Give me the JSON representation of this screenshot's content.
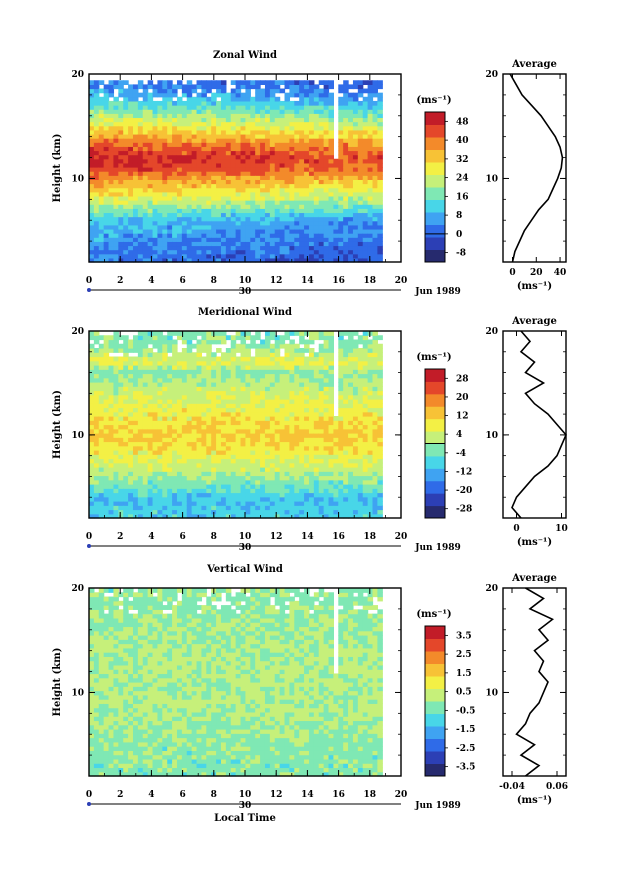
{
  "chart_data": [
    {
      "type": "heatmap",
      "title": "Zonal Wind",
      "xlabel": "",
      "ylabel": "Height (km)",
      "xlim": [
        0,
        20
      ],
      "ylim": [
        2,
        20
      ],
      "x_ticks": [
        "0",
        "2",
        "4",
        "6",
        "8",
        "10",
        "12",
        "14",
        "16",
        "18",
        "20"
      ],
      "y_ticks": [
        "10",
        "20"
      ],
      "date_marker": "30",
      "date_label": "Jun 1989",
      "colorbar": {
        "unit": "(ms⁻¹)",
        "ticks": [
          "48",
          "40",
          "32",
          "24",
          "16",
          "8",
          "0",
          "-8"
        ],
        "range": [
          -12,
          52
        ]
      },
      "data_coverage_hours": [
        0,
        18.8
      ],
      "profile_rows": [
        {
          "height": 2,
          "value": 0
        },
        {
          "height": 4,
          "value": 4
        },
        {
          "height": 6,
          "value": 8
        },
        {
          "height": 8,
          "value": 24
        },
        {
          "height": 10,
          "value": 36
        },
        {
          "height": 11,
          "value": 44
        },
        {
          "height": 12,
          "value": 46
        },
        {
          "height": 13,
          "value": 42
        },
        {
          "height": 14,
          "value": 34
        },
        {
          "height": 16,
          "value": 20
        },
        {
          "height": 18,
          "value": 6
        },
        {
          "height": 19,
          "value": 2
        }
      ],
      "average": {
        "title": "Average",
        "xlabel": "(ms⁻¹)",
        "x_ticks": [
          "0",
          "20",
          "40"
        ],
        "xlim": [
          -8,
          45
        ],
        "y_ticks": [
          "10",
          "20"
        ],
        "profile": [
          {
            "height": 2,
            "value": 0
          },
          {
            "height": 3,
            "value": 2
          },
          {
            "height": 4,
            "value": 6
          },
          {
            "height": 5,
            "value": 10
          },
          {
            "height": 6,
            "value": 16
          },
          {
            "height": 7,
            "value": 22
          },
          {
            "height": 8,
            "value": 30
          },
          {
            "height": 9,
            "value": 34
          },
          {
            "height": 10,
            "value": 38
          },
          {
            "height": 11,
            "value": 41
          },
          {
            "height": 12,
            "value": 42
          },
          {
            "height": 13,
            "value": 40
          },
          {
            "height": 14,
            "value": 36
          },
          {
            "height": 15,
            "value": 30
          },
          {
            "height": 16,
            "value": 24
          },
          {
            "height": 17,
            "value": 16
          },
          {
            "height": 18,
            "value": 8
          },
          {
            "height": 19,
            "value": 3
          },
          {
            "height": 20,
            "value": -2
          }
        ]
      }
    },
    {
      "type": "heatmap",
      "title": "Meridional Wind",
      "xlabel": "",
      "ylabel": "Height (km)",
      "xlim": [
        0,
        20
      ],
      "ylim": [
        2,
        20
      ],
      "x_ticks": [
        "0",
        "2",
        "4",
        "6",
        "8",
        "10",
        "12",
        "14",
        "16",
        "18",
        "20"
      ],
      "y_ticks": [
        "10",
        "20"
      ],
      "date_marker": "30",
      "date_label": "Jun 1989",
      "colorbar": {
        "unit": "(ms⁻¹)",
        "ticks": [
          "28",
          "20",
          "12",
          "4",
          "-4",
          "-12",
          "-20",
          "-28"
        ],
        "range": [
          -32,
          32
        ]
      },
      "data_coverage_hours": [
        0,
        18.8
      ],
      "profile_rows": [
        {
          "height": 2,
          "value": -8
        },
        {
          "height": 4,
          "value": -10
        },
        {
          "height": 5,
          "value": -4
        },
        {
          "height": 7,
          "value": 4
        },
        {
          "height": 9,
          "value": 10
        },
        {
          "height": 10,
          "value": 12
        },
        {
          "height": 12,
          "value": 8
        },
        {
          "height": 14,
          "value": 4
        },
        {
          "height": 16,
          "value": -2
        },
        {
          "height": 17,
          "value": 6
        },
        {
          "height": 18,
          "value": 2
        },
        {
          "height": 19,
          "value": -2
        }
      ],
      "average": {
        "title": "Average",
        "xlabel": "(ms⁻¹)",
        "x_ticks": [
          "0",
          "10"
        ],
        "xlim": [
          -3,
          11
        ],
        "y_ticks": [
          "10",
          "20"
        ],
        "profile": [
          {
            "height": 2,
            "value": 1
          },
          {
            "height": 3,
            "value": -1
          },
          {
            "height": 4,
            "value": 0
          },
          {
            "height": 5,
            "value": 2
          },
          {
            "height": 6,
            "value": 4
          },
          {
            "height": 7,
            "value": 7
          },
          {
            "height": 8,
            "value": 9
          },
          {
            "height": 9,
            "value": 10
          },
          {
            "height": 10,
            "value": 11
          },
          {
            "height": 11,
            "value": 9
          },
          {
            "height": 12,
            "value": 7
          },
          {
            "height": 13,
            "value": 4
          },
          {
            "height": 14,
            "value": 2
          },
          {
            "height": 15,
            "value": 6
          },
          {
            "height": 16,
            "value": 2
          },
          {
            "height": 17,
            "value": 4
          },
          {
            "height": 18,
            "value": 1
          },
          {
            "height": 19,
            "value": 3
          },
          {
            "height": 20,
            "value": 1
          }
        ]
      }
    },
    {
      "type": "heatmap",
      "title": "Vertical Wind",
      "xlabel": "Local Time",
      "ylabel": "Height (km)",
      "xlim": [
        0,
        20
      ],
      "ylim": [
        2,
        20
      ],
      "x_ticks": [
        "0",
        "2",
        "4",
        "6",
        "8",
        "10",
        "12",
        "14",
        "16",
        "18",
        "20"
      ],
      "y_ticks": [
        "10",
        "20"
      ],
      "date_marker": "30",
      "date_label": "Jun 1989",
      "colorbar": {
        "unit": "(ms⁻¹)",
        "ticks": [
          "3.5",
          "2.5",
          "1.5",
          "0.5",
          "-0.5",
          "-1.5",
          "-2.5",
          "-3.5"
        ],
        "range": [
          -4,
          4
        ]
      },
      "data_coverage_hours": [
        0,
        18.8
      ],
      "profile_rows": [
        {
          "height": 2,
          "value": -0.3
        },
        {
          "height": 5,
          "value": -0.2
        },
        {
          "height": 8,
          "value": 0.1
        },
        {
          "height": 11,
          "value": 0.2
        },
        {
          "height": 14,
          "value": 0.1
        },
        {
          "height": 17,
          "value": -0.1
        },
        {
          "height": 20,
          "value": -0.2
        }
      ],
      "average": {
        "title": "Average",
        "xlabel": "(ms⁻¹)",
        "x_ticks": [
          "-0.04",
          "0.06"
        ],
        "xlim": [
          -0.06,
          0.08
        ],
        "y_ticks": [
          "10",
          "20"
        ],
        "profile": [
          {
            "height": 2,
            "value": -0.01
          },
          {
            "height": 3,
            "value": 0.02
          },
          {
            "height": 4,
            "value": -0.02
          },
          {
            "height": 5,
            "value": 0.01
          },
          {
            "height": 6,
            "value": -0.03
          },
          {
            "height": 7,
            "value": -0.01
          },
          {
            "height": 8,
            "value": 0.0
          },
          {
            "height": 9,
            "value": 0.02
          },
          {
            "height": 10,
            "value": 0.03
          },
          {
            "height": 11,
            "value": 0.04
          },
          {
            "height": 12,
            "value": 0.02
          },
          {
            "height": 13,
            "value": 0.03
          },
          {
            "height": 14,
            "value": 0.01
          },
          {
            "height": 15,
            "value": 0.04
          },
          {
            "height": 16,
            "value": 0.02
          },
          {
            "height": 17,
            "value": 0.05
          },
          {
            "height": 18,
            "value": 0.0
          },
          {
            "height": 19,
            "value": 0.03
          },
          {
            "height": 20,
            "value": -0.01
          }
        ]
      }
    }
  ],
  "colors": {
    "scale": [
      "#262a6e",
      "#2c3fb5",
      "#2f6be8",
      "#3fa3f2",
      "#48d6e8",
      "#7fe8b4",
      "#c6f07a",
      "#f3f045",
      "#f7c236",
      "#f38a2a",
      "#e4472a",
      "#c21c28"
    ],
    "zero_line": "#000000"
  }
}
